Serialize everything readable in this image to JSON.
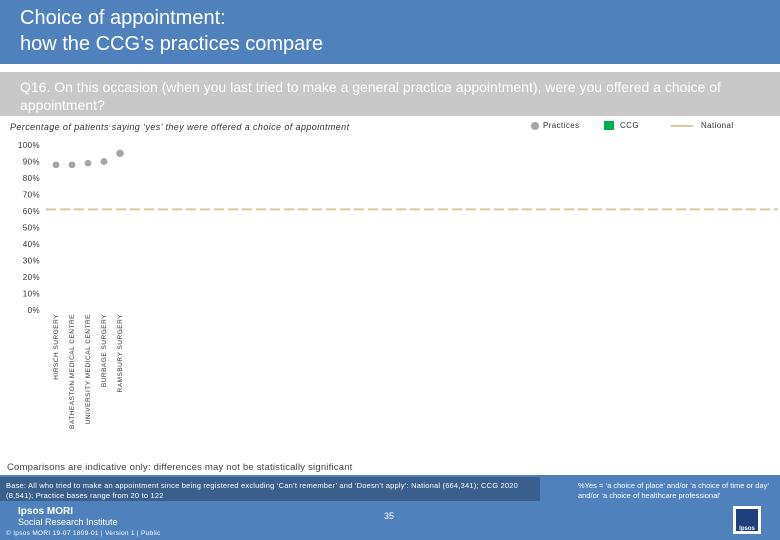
{
  "header": {
    "title_line1": "Choice of appointment:",
    "title_line2": "how the CCG’s practices compare"
  },
  "question": "Q16. On this occasion (when you last tried to make a general practice appointment), were you offered a choice of appointment?",
  "legend": {
    "practices": "Practices",
    "ccg": "CCG",
    "national": "National"
  },
  "chart_data": {
    "type": "scatter",
    "title": "Percentage of patients saying ‘yes’ they were offered a choice of appointment",
    "categories": [
      "HIRSCH SURGERY",
      "BATHEASTON MEDICAL CENTRE",
      "UNIVERSITY MEDICAL CENTRE",
      "BURBAGE SURGERY",
      "RAMSBURY SURGERY"
    ],
    "series": [
      {
        "name": "Practices",
        "values": [
          88,
          88,
          89,
          90,
          95
        ]
      }
    ],
    "national": 61,
    "ylim": [
      0,
      100
    ],
    "y_tick_step": 10,
    "y_ticks": [
      "0%",
      "10%",
      "20%",
      "30%",
      "40%",
      "50%",
      "60%",
      "70%",
      "80%",
      "90%",
      "100%"
    ],
    "colors": {
      "practices": "#a6a6a6",
      "ccg": "#00b050",
      "national": "#d6c9a0"
    }
  },
  "caveat": "Comparisons are indicative only: differences may not be statistically significant",
  "footer": {
    "base": "Base: All who tried to make an appointment since being registered excluding ‘Can’t remember’ and ‘Doesn’t apply’: National (664,341); CCG 2020 (8,541); Practice bases range from 20 to 122",
    "footnote": "%Yes = ‘a choice of place’ and/or ‘a choice of time or day’ and/or ‘a choice of healthcare professional’",
    "brand_line1": "Ipsos MORI",
    "brand_line2": "Social Research Institute",
    "page": "35",
    "copyright": "© Ipsos MORI      19-07 1809-01 | Version 1 | Public",
    "logo_text": "Ipsos"
  }
}
